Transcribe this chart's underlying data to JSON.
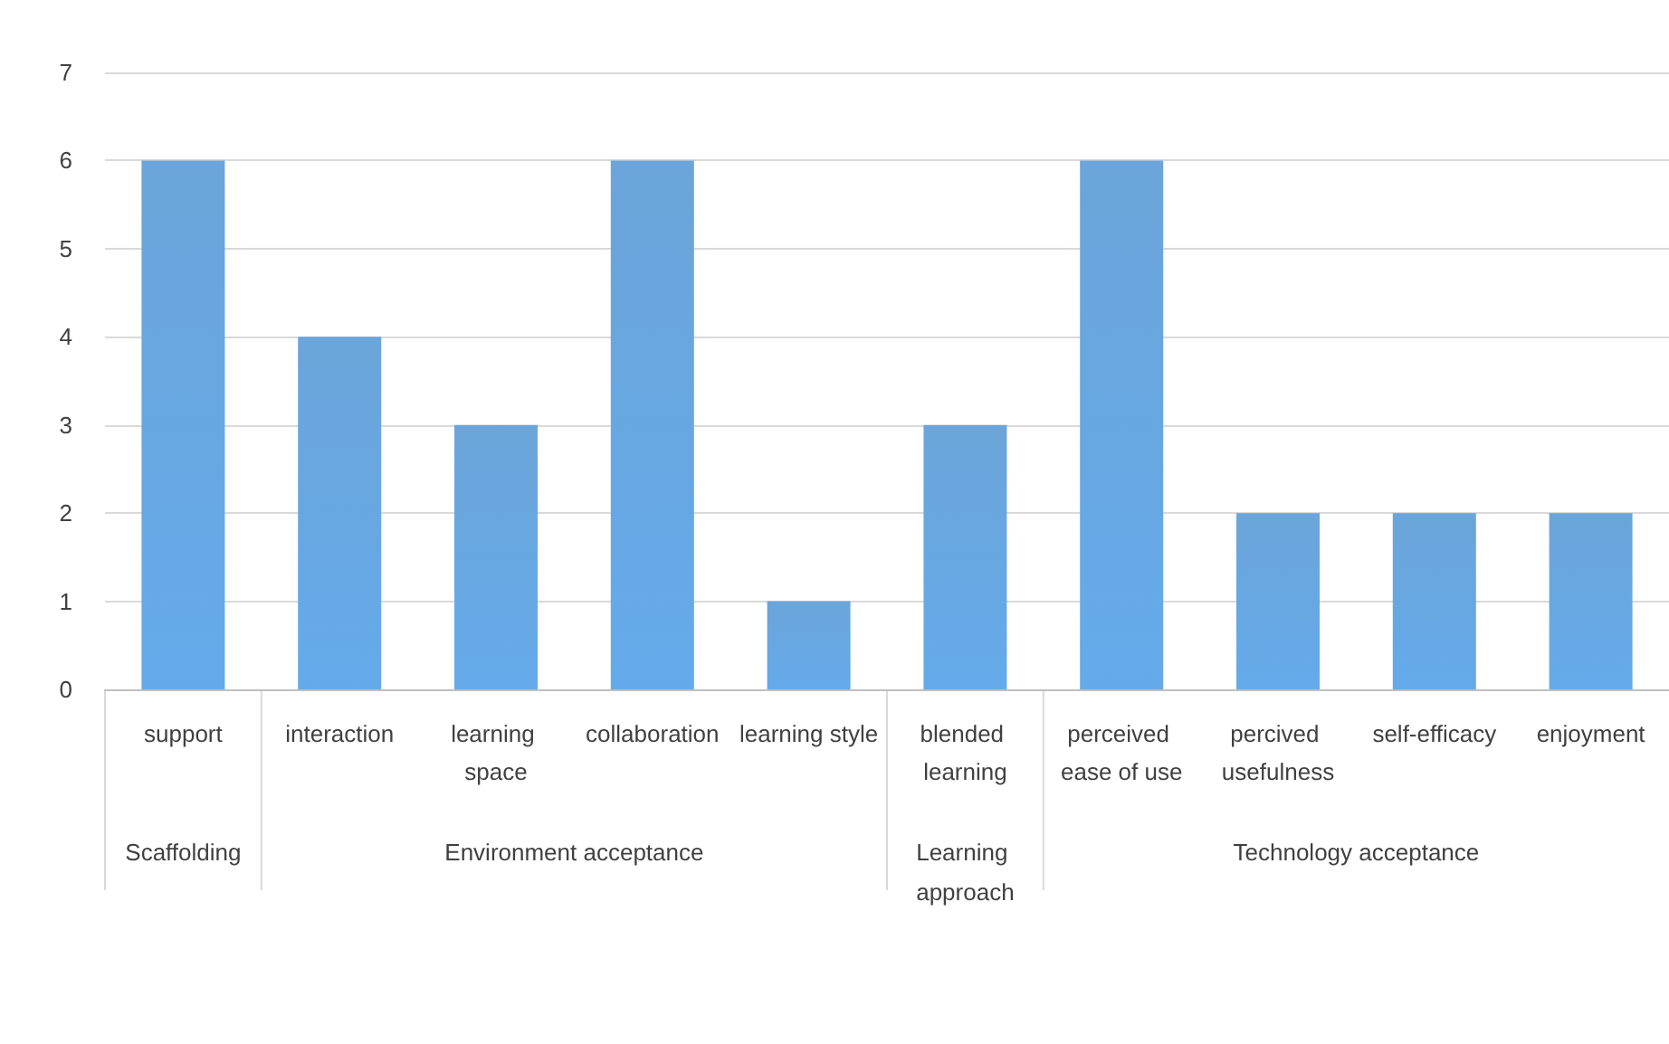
{
  "chart_data": {
    "type": "bar",
    "categories": [
      "support",
      "interaction",
      "learning space",
      "collaboration",
      "learning style",
      "blended learning",
      "perceived ease of use",
      "percived usefulness",
      "self-efficacy",
      "enjoyment"
    ],
    "values": [
      6,
      4,
      3,
      6,
      1,
      3,
      6,
      2,
      2,
      2
    ],
    "color": "#5b9bd5",
    "ylim": [
      0,
      7
    ],
    "yticks": [
      0,
      1,
      2,
      3,
      4,
      5,
      6,
      7
    ],
    "grid": "y",
    "annotations": [
      "Scaffolding",
      "Environment acceptance",
      "Learning approach",
      "Technology acceptance"
    ]
  }
}
